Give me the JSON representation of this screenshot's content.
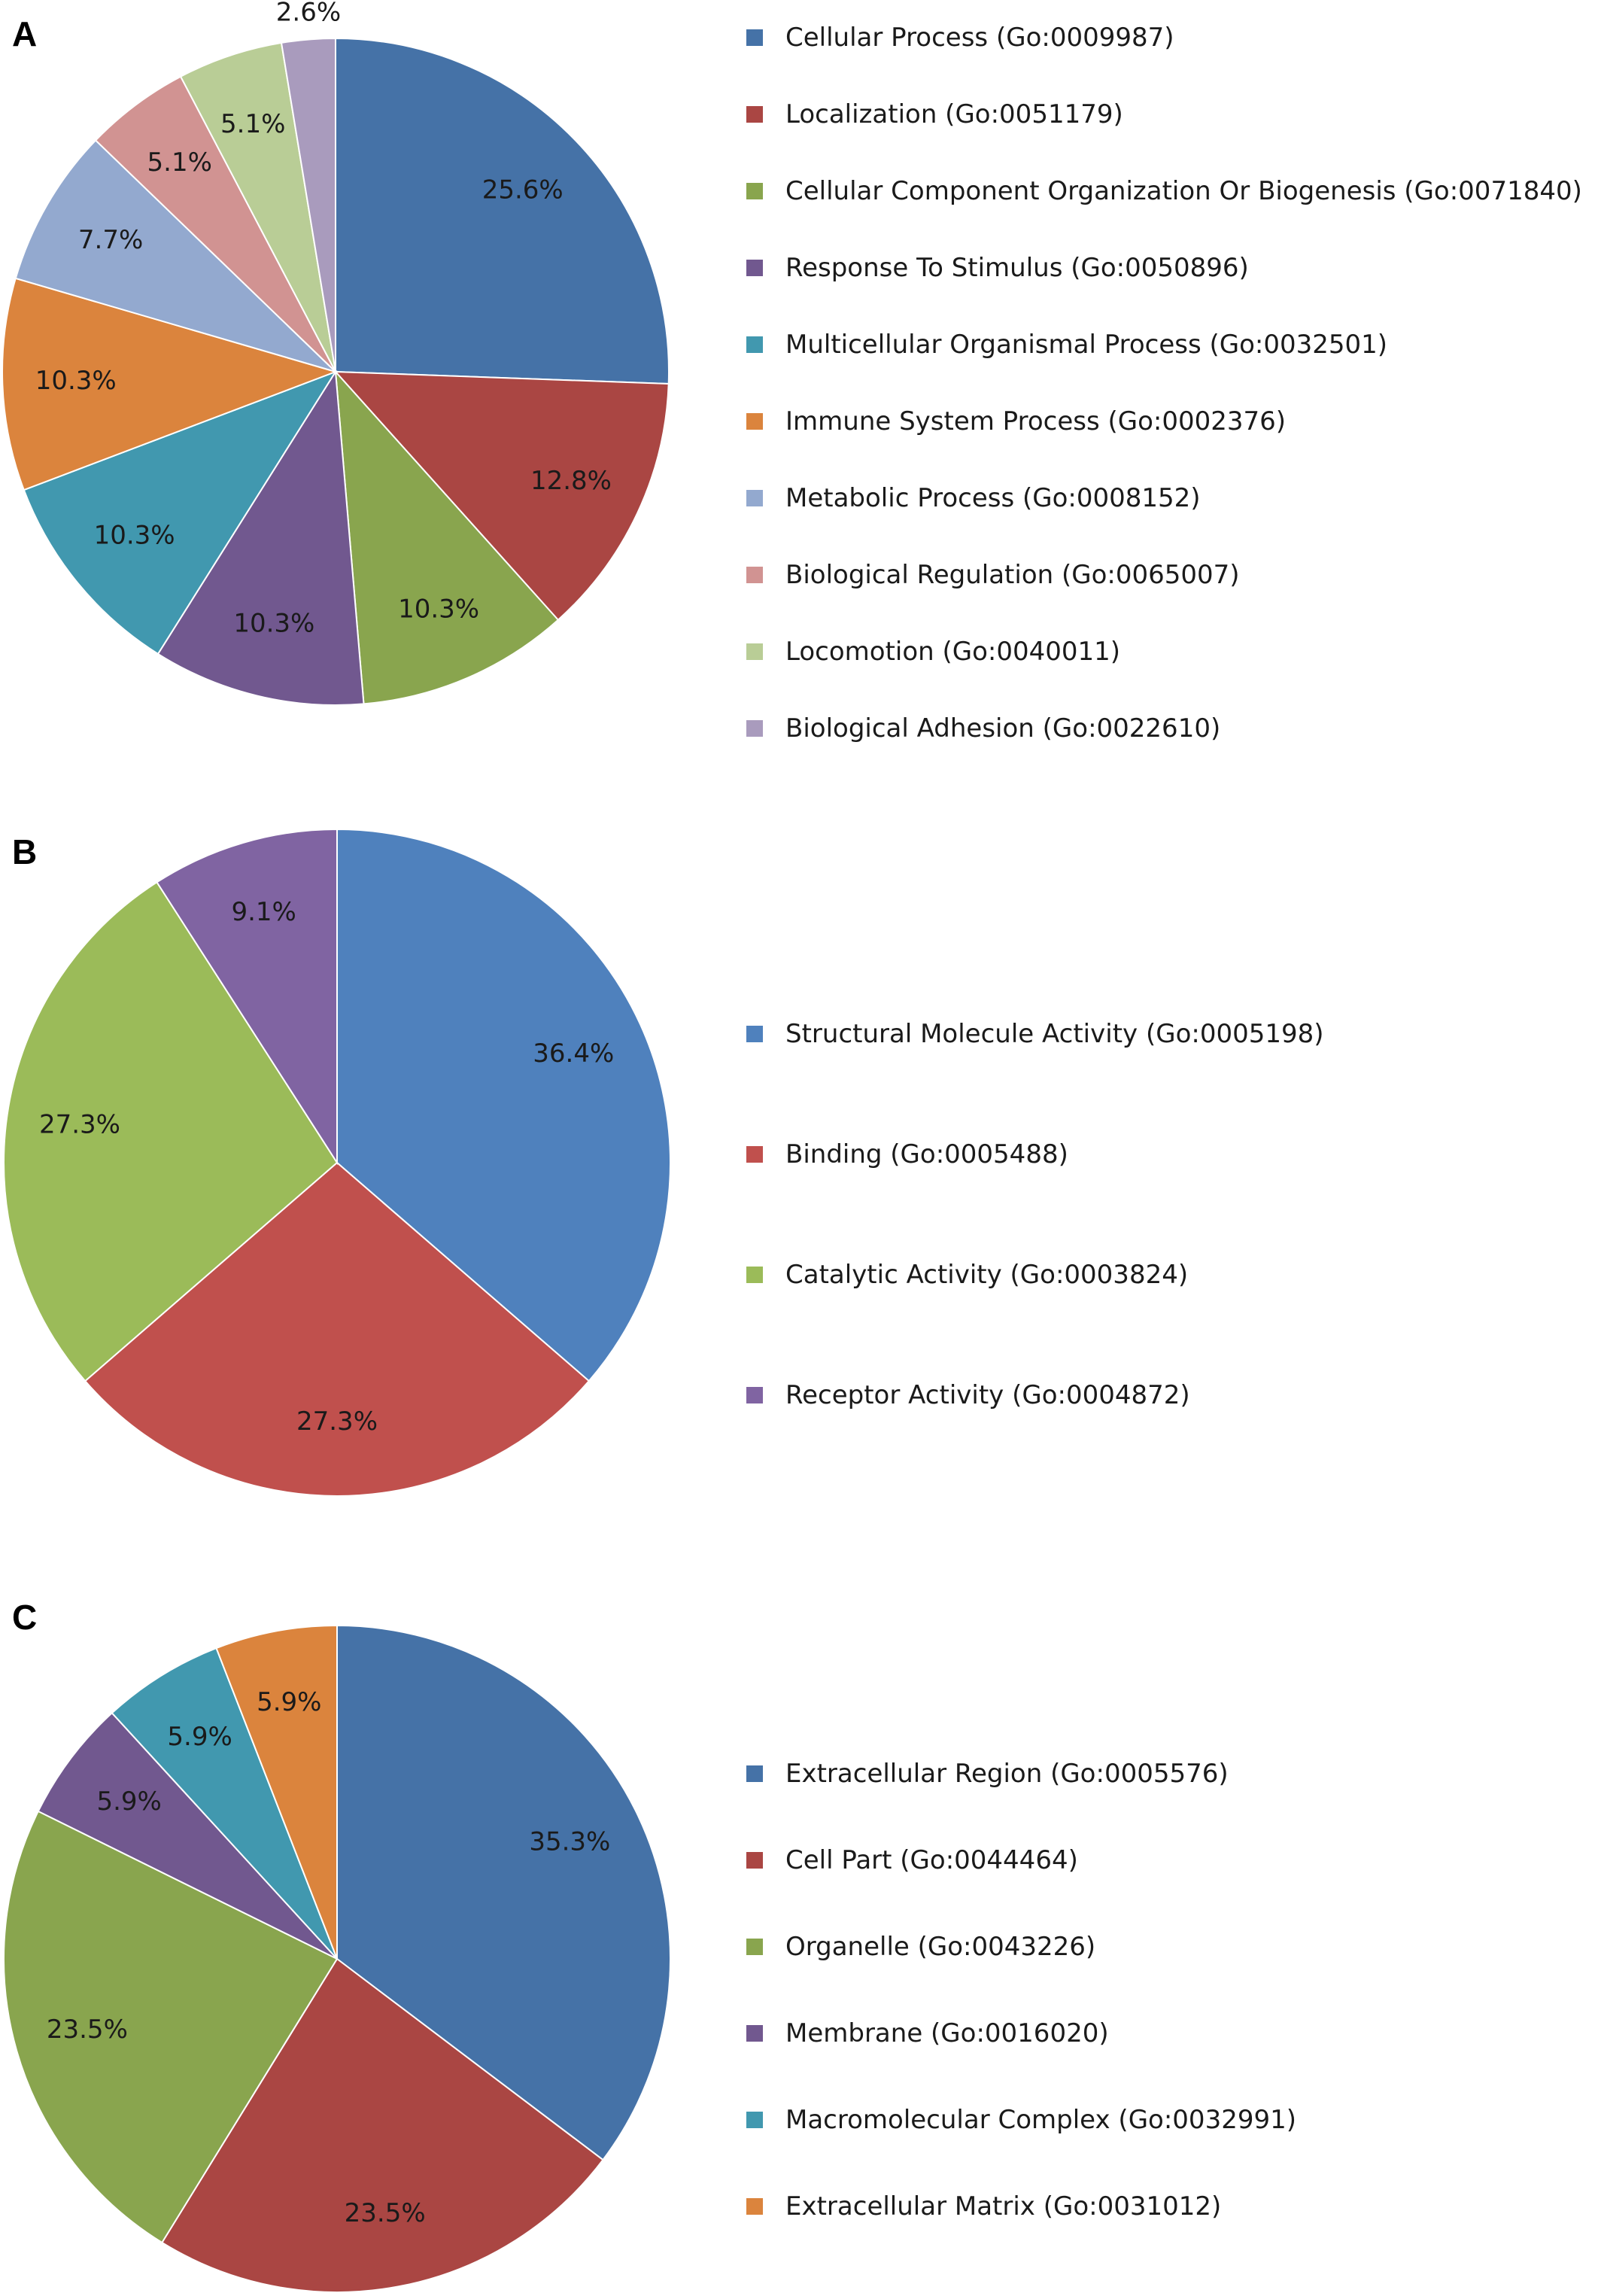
{
  "chart_data": [
    {
      "type": "pie",
      "panel": "A",
      "categories": [
        "Cellular Process (Go:0009987)",
        "Localization (Go:0051179)",
        "Cellular Component Organization Or Biogenesis (Go:0071840)",
        "Response To Stimulus (Go:0050896)",
        "Multicellular Organismal Process (Go:0032501)",
        "Immune System Process (Go:0002376)",
        "Metabolic Process (Go:0008152)",
        "Biological Regulation (Go:0065007)",
        "Locomotion (Go:0040011)",
        "Biological Adhesion (Go:0022610)"
      ],
      "values": [
        25.6,
        12.8,
        10.3,
        10.3,
        10.3,
        10.3,
        7.7,
        5.1,
        5.1,
        2.6
      ],
      "labels": [
        "25.6%",
        "12.8%",
        "10.3%",
        "10.3%",
        "10.3%",
        "10.3%",
        "7.7%",
        "5.1%",
        "5.1%",
        "2.6%"
      ],
      "colors": [
        "#4572A7",
        "#AA4643",
        "#89A54E",
        "#71588F",
        "#4198AF",
        "#DB843D",
        "#93A9CF",
        "#D19392",
        "#B9CD96",
        "#A99BBD"
      ],
      "legend": "right"
    },
    {
      "type": "pie",
      "panel": "B",
      "categories": [
        "Structural Molecule Activity (Go:0005198)",
        "Binding (Go:0005488)",
        "Catalytic Activity (Go:0003824)",
        "Receptor Activity (Go:0004872)"
      ],
      "values": [
        36.4,
        27.3,
        27.3,
        9.1
      ],
      "labels": [
        "36.4%",
        "27.3%",
        "27.3%",
        "9.1%"
      ],
      "colors": [
        "#4F81BD",
        "#C0504D",
        "#9BBB59",
        "#8064A2"
      ],
      "legend": "right"
    },
    {
      "type": "pie",
      "panel": "C",
      "categories": [
        "Extracellular Region (Go:0005576)",
        "Cell Part (Go:0044464)",
        "Organelle (Go:0043226)",
        "Membrane (Go:0016020)",
        "Macromolecular Complex (Go:0032991)",
        "Extracellular Matrix (Go:0031012)"
      ],
      "values": [
        35.3,
        23.5,
        23.5,
        5.9,
        5.9,
        5.9
      ],
      "labels": [
        "35.3%",
        "23.5%",
        "23.5%",
        "5.9%",
        "5.9%",
        "5.9%"
      ],
      "colors": [
        "#4572A7",
        "#AA4643",
        "#89A54E",
        "#71588F",
        "#4198AF",
        "#DB843D"
      ],
      "legend": "right"
    }
  ]
}
